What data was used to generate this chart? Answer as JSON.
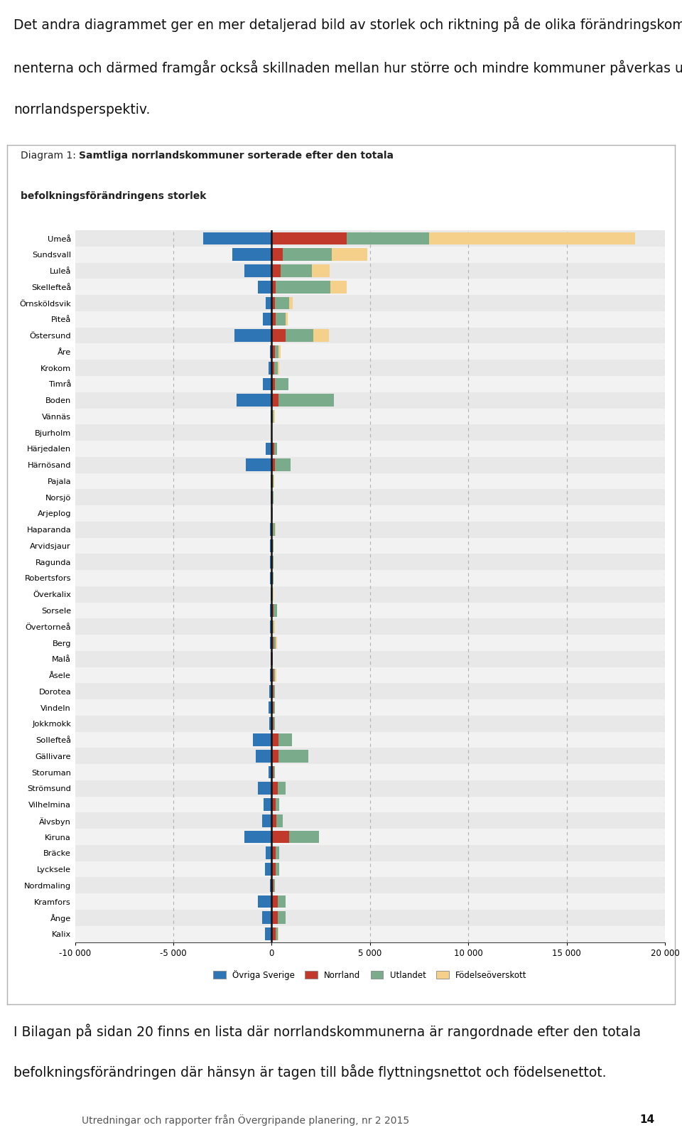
{
  "top_text_line1": "Det andra diagrammet ger en mer detaljerad bild av storlek och riktning på de olika förändringskompo-",
  "top_text_line2": "nenterna och därmed framgår också skillnaden mellan hur större och mindre kommuner påverkas ur ett",
  "top_text_line3": "norrlandsperspektiv.",
  "bottom_text_line1": "I Bilagan på sidan 20 finns en lista där norrlandskommunerna är rangordnade efter den totala",
  "bottom_text_line2": "befolkningsförändringen där hänsyn är tagen till både flyttningsnettot och födelsenettot.",
  "footer_text": "Utredningar och rapporter från Övergripande planering, nr 2 2015",
  "footer_page": "14",
  "diagram_title_normal": "Diagram 1: ",
  "diagram_title_bold": "Samtliga norrlandskommuner sorterade efter den totala befolkningsförändringens storlek",
  "categories": [
    "Umeå",
    "Sundsvall",
    "Luleå",
    "Skellefteå",
    "Örnsköldsvik",
    "Piteå",
    "Östersund",
    "Åre",
    "Krokom",
    "Timrå",
    "Boden",
    "Vännäs",
    "Bjurholm",
    "Härjedalen",
    "Härnösand",
    "Pajala",
    "Norsjö",
    "Arjeplog",
    "Haparanda",
    "Arvidsjaur",
    "Ragunda",
    "Robertsfors",
    "Överkalix",
    "Sorsele",
    "Övertorneå",
    "Berg",
    "Malå",
    "Åsele",
    "Dorotea",
    "Vindeln",
    "Jokkmokk",
    "Sollefteå",
    "Gällivare",
    "Storuman",
    "Strömsund",
    "Vilhelmina",
    "Älvsbyn",
    "Kiruna",
    "Bräcke",
    "Lycksele",
    "Nordmaling",
    "Kramfors",
    "Ånge",
    "Kalix"
  ],
  "ovriga_sverige": [
    -3500,
    -2000,
    -1400,
    -700,
    -300,
    -450,
    -1900,
    -80,
    -150,
    -450,
    -1800,
    -50,
    -10,
    -300,
    -1300,
    -50,
    -50,
    -30,
    -100,
    -80,
    -80,
    -80,
    -60,
    -100,
    -80,
    -100,
    -50,
    -100,
    -130,
    -150,
    -120,
    -950,
    -800,
    -150,
    -700,
    -400,
    -500,
    -1400,
    -300,
    -350,
    -100,
    -700,
    -500,
    -350
  ],
  "norrland": [
    3800,
    550,
    450,
    200,
    180,
    220,
    700,
    150,
    120,
    150,
    350,
    30,
    8,
    120,
    150,
    60,
    50,
    30,
    70,
    50,
    50,
    50,
    30,
    80,
    60,
    90,
    40,
    100,
    100,
    100,
    100,
    350,
    350,
    100,
    300,
    200,
    250,
    900,
    200,
    200,
    100,
    300,
    300,
    200
  ],
  "utlandet": [
    4200,
    2500,
    1600,
    2800,
    700,
    500,
    1400,
    200,
    200,
    700,
    2800,
    80,
    8,
    150,
    800,
    30,
    30,
    20,
    100,
    60,
    40,
    60,
    30,
    180,
    40,
    130,
    30,
    80,
    80,
    80,
    60,
    700,
    1500,
    80,
    400,
    200,
    300,
    1500,
    200,
    200,
    60,
    400,
    400,
    100
  ],
  "fodelse": [
    10500,
    1800,
    900,
    800,
    200,
    100,
    800,
    100,
    50,
    0,
    0,
    50,
    0,
    0,
    0,
    50,
    0,
    0,
    50,
    0,
    0,
    0,
    50,
    0,
    50,
    50,
    0,
    50,
    0,
    0,
    0,
    0,
    0,
    0,
    0,
    0,
    0,
    0,
    0,
    0,
    0,
    0,
    0,
    50
  ],
  "color_ovriga": "#2e75b6",
  "color_norrland": "#c0392b",
  "color_utlandet": "#7aab8a",
  "color_fodelse": "#f5d08a",
  "xlim_min": -10000,
  "xlim_max": 20000,
  "xticks": [
    -10000,
    -5000,
    0,
    5000,
    10000,
    15000,
    20000
  ],
  "xtick_labels": [
    "-10 000",
    "-5 000",
    "0",
    "5 000",
    "10 000",
    "15 000",
    "20 000"
  ],
  "legend_labels": [
    "Övriga Sverige",
    "Norrland",
    "Utlandet",
    "Födelseöverskott"
  ],
  "background_color": "#ffffff",
  "row_color_even": "#e8e8e8",
  "row_color_odd": "#f2f2f2",
  "grid_color": "#b0b0b0",
  "zero_line_color": "#111111",
  "border_color": "#b0b0b0",
  "bar_height": 0.78
}
